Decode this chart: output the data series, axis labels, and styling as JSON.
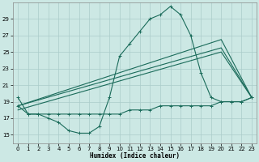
{
  "xlabel": "Humidex (Indice chaleur)",
  "xlim": [
    -0.5,
    23.5
  ],
  "ylim": [
    14.0,
    31.0
  ],
  "yticks": [
    15,
    17,
    19,
    21,
    23,
    25,
    27,
    29
  ],
  "xticks": [
    0,
    1,
    2,
    3,
    4,
    5,
    6,
    7,
    8,
    9,
    10,
    11,
    12,
    13,
    14,
    15,
    16,
    17,
    18,
    19,
    20,
    21,
    22,
    23
  ],
  "bg_color": "#cce8e4",
  "grid_color": "#aaccca",
  "line_color": "#1a6b5a",
  "line1_x": [
    0,
    1,
    2,
    3,
    4,
    5,
    6,
    7,
    8,
    9,
    10,
    11,
    12,
    13,
    14,
    15,
    16,
    17,
    18,
    19,
    20,
    21,
    22,
    23
  ],
  "line1_y": [
    19.5,
    17.5,
    17.5,
    17.0,
    16.5,
    15.5,
    15.2,
    15.2,
    16.0,
    19.5,
    24.5,
    26.0,
    27.5,
    29.0,
    29.5,
    30.5,
    29.5,
    27.0,
    22.5,
    19.5,
    19.0,
    19.0,
    19.0,
    19.5
  ],
  "line2_x": [
    0,
    1,
    2,
    3,
    4,
    5,
    6,
    7,
    8,
    9,
    10,
    11,
    12,
    13,
    14,
    15,
    16,
    17,
    18,
    19,
    20,
    21,
    22,
    23
  ],
  "line2_y": [
    18.5,
    17.5,
    17.5,
    17.5,
    17.5,
    17.5,
    17.5,
    17.5,
    17.5,
    17.5,
    17.5,
    18.0,
    18.0,
    18.0,
    18.5,
    18.5,
    18.5,
    18.5,
    18.5,
    18.5,
    19.0,
    19.0,
    19.0,
    19.5
  ],
  "line3_x": [
    0,
    20,
    23
  ],
  "line3_y": [
    18.5,
    26.5,
    19.5
  ],
  "line4_x": [
    0,
    20,
    23
  ],
  "line4_y": [
    18.5,
    25.5,
    19.5
  ],
  "line5_x": [
    0,
    20,
    23
  ],
  "line5_y": [
    18.0,
    25.0,
    19.5
  ]
}
